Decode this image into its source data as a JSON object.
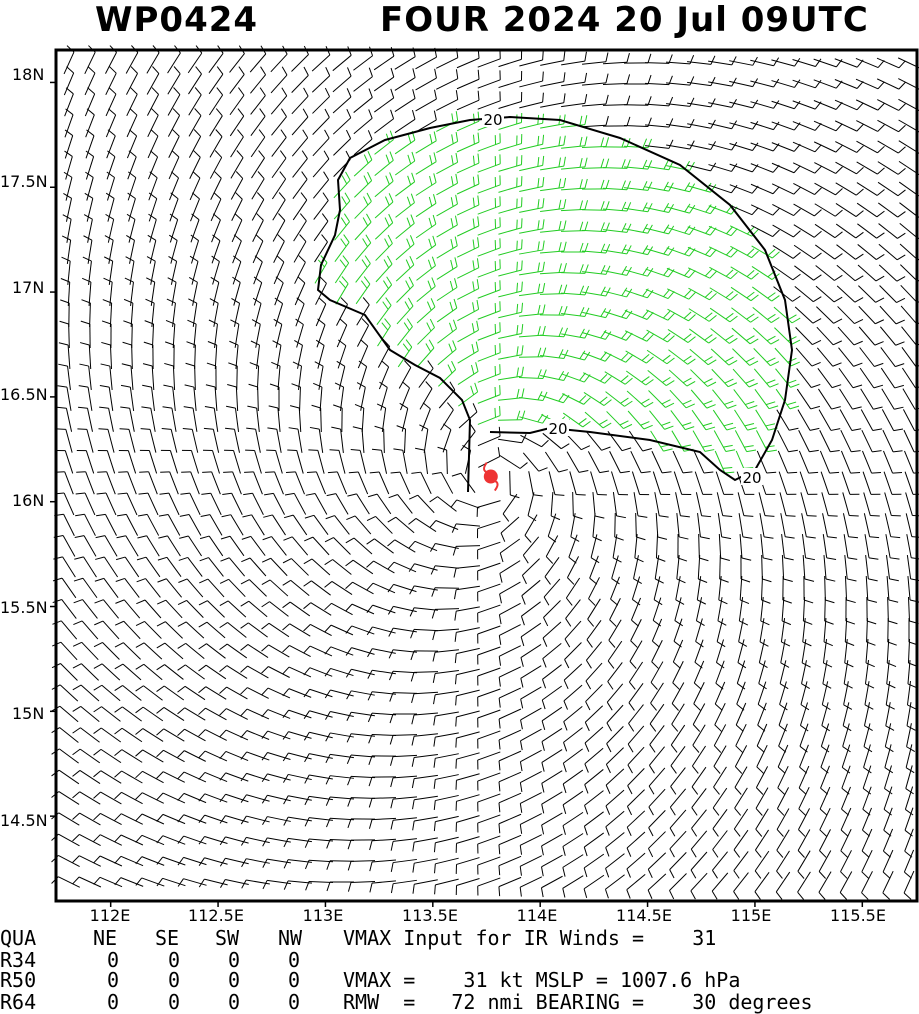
{
  "title": {
    "storm_id": "WP0424",
    "storm_info": "FOUR 2024 20 Jul 09UTC"
  },
  "map": {
    "lat_labels": [
      "18N",
      "17.5N",
      "17N",
      "16.5N",
      "16N",
      "15.5N",
      "15N",
      "14.5N"
    ],
    "lat_values": [
      18,
      17.5,
      17,
      16.5,
      16,
      15.5,
      15,
      14.5
    ],
    "lon_labels": [
      "112E",
      "112.5E",
      "113E",
      "113.5E",
      "114E",
      "114.5E",
      "115E",
      "115.5E"
    ],
    "lon_values": [
      112,
      112.5,
      113,
      113.5,
      114,
      114.5,
      115,
      115.5
    ],
    "lat_range": [
      14.1,
      18.15
    ],
    "lon_range": [
      111.75,
      115.75
    ],
    "storm_center": {
      "lat": 16.12,
      "lon": 113.77
    },
    "contour_label": "20",
    "colors": {
      "barb": "#000000",
      "barb_strong": "#22cc22",
      "center": "#ee3333",
      "contour": "#000000"
    }
  },
  "table": {
    "header": [
      "QUA",
      "NE",
      "SE",
      "SW",
      "NW"
    ],
    "rows": [
      {
        "label": "R34",
        "values": [
          "0",
          "0",
          "0",
          "0"
        ]
      },
      {
        "label": "R50",
        "values": [
          "0",
          "0",
          "0",
          "0"
        ]
      },
      {
        "label": "R64",
        "values": [
          "0",
          "0",
          "0",
          "0"
        ]
      }
    ],
    "info_line1": "VMAX Input for IR Winds =    31",
    "info_line2": "VMAX =    31 kt MSLP = 1007.6 hPa",
    "info_line3": "RMW  =   72 nmi BEARING =    30 degrees"
  }
}
